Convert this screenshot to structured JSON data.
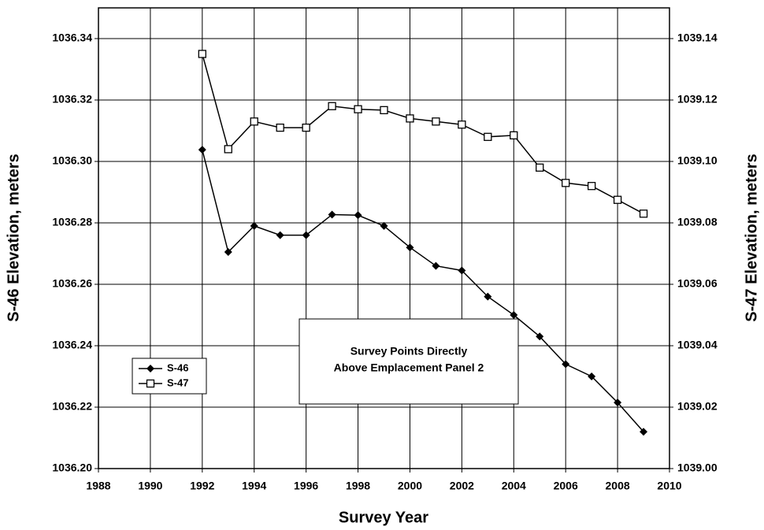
{
  "chart_data": {
    "type": "line",
    "xlabel": "Survey Year",
    "ylabel": "S-46 Elevation, meters",
    "y2label": "S-47 Elevation, meters",
    "annotation": [
      "Survey Points Directly",
      "Above Emplacement Panel 2"
    ],
    "x": [
      1992,
      1993,
      1994,
      1995,
      1996,
      1997,
      1998,
      1999,
      2000,
      2001,
      2002,
      2003,
      2004,
      2005,
      2006,
      2007,
      2008,
      2009
    ],
    "series": [
      {
        "name": "S-46",
        "color": "#000000",
        "marker": "diamond",
        "axis": "y",
        "values": [
          1036.3038,
          1036.2705,
          1036.279,
          1036.276,
          1036.276,
          1036.2827,
          1036.2825,
          1036.279,
          1036.272,
          1036.266,
          1036.2645,
          1036.256,
          1036.25,
          1036.243,
          1036.234,
          1036.23,
          1036.2215,
          1036.212
        ]
      },
      {
        "name": "S-47",
        "color": "#000000",
        "marker": "square",
        "axis": "y2",
        "values": [
          1039.135,
          1039.104,
          1039.113,
          1039.111,
          1039.111,
          1039.118,
          1039.117,
          1039.1167,
          1039.114,
          1039.113,
          1039.112,
          1039.108,
          1039.1085,
          1039.098,
          1039.093,
          1039.092,
          1039.0875,
          1039.083
        ]
      }
    ],
    "xlim": [
      1988,
      2010
    ],
    "xticks": [
      1988,
      1990,
      1992,
      1994,
      1996,
      1998,
      2000,
      2002,
      2004,
      2006,
      2008,
      2010
    ],
    "ylim": [
      1036.2,
      1036.35
    ],
    "yticks": [
      {
        "value": 1036.2,
        "label": "1036.20"
      },
      1036.22,
      1036.24,
      1036.26,
      1036.28,
      {
        "value": 1036.3,
        "label": "1036.30"
      },
      1036.32,
      1036.34
    ],
    "y2lim": [
      1039.0,
      1039.15
    ],
    "y2ticks": [
      {
        "value": 1039.0,
        "label": "1039.00"
      },
      1039.02,
      1039.04,
      1039.06,
      1039.08,
      {
        "value": 1039.1,
        "label": "1039.10"
      },
      1039.12,
      1039.14
    ],
    "grid": true,
    "legend": "lower left"
  }
}
